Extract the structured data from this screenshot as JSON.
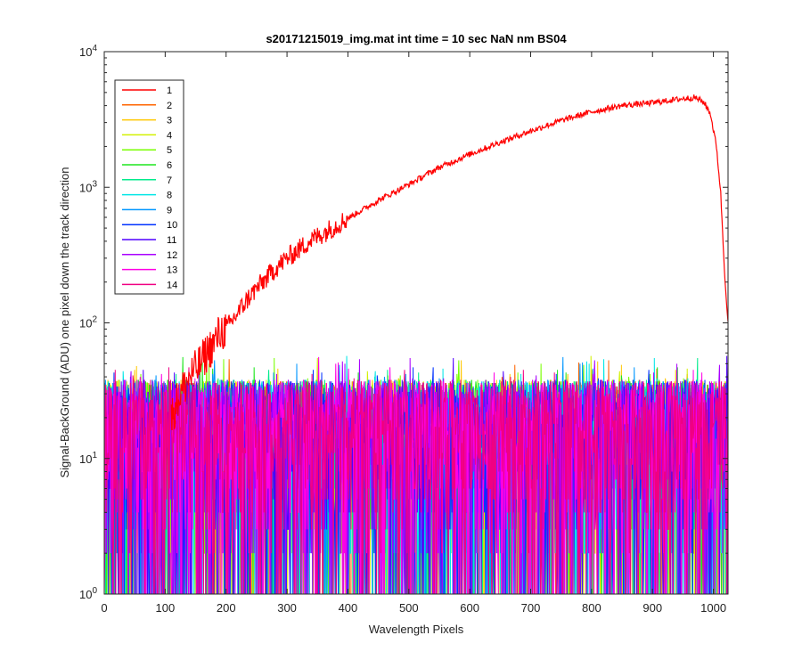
{
  "chart_data": {
    "type": "line",
    "title": "s20171215019_img.mat int time = 10 sec  NaN nm BS04",
    "xlabel": "Wavelength Pixels",
    "ylabel": "Signal-BackGround (ADU) one pixel down the track direction",
    "xlim": [
      0,
      1024
    ],
    "ylim": [
      1,
      10000
    ],
    "yscale": "log",
    "x_ticks": [
      "0",
      "100",
      "200",
      "300",
      "400",
      "500",
      "600",
      "700",
      "800",
      "900",
      "1000"
    ],
    "y_ticks": [
      {
        "base": "10",
        "exp": "0"
      },
      {
        "base": "10",
        "exp": "1"
      },
      {
        "base": "10",
        "exp": "2"
      },
      {
        "base": "10",
        "exp": "3"
      },
      {
        "base": "10",
        "exp": "4"
      }
    ],
    "legend_position": "top-left",
    "series": [
      {
        "name": "1",
        "color": "#ff0000",
        "kind": "signal",
        "x": [
          110,
          120,
          130,
          140,
          150,
          160,
          170,
          180,
          190,
          200,
          220,
          240,
          260,
          280,
          300,
          320,
          340,
          360,
          380,
          400,
          450,
          500,
          550,
          600,
          650,
          700,
          750,
          800,
          850,
          900,
          950,
          970,
          985,
          995,
          1005,
          1012,
          1018,
          1024
        ],
        "y": [
          20,
          27,
          33,
          40,
          45,
          52,
          62,
          70,
          85,
          90,
          120,
          160,
          200,
          250,
          300,
          350,
          410,
          460,
          520,
          590,
          800,
          1050,
          1400,
          1750,
          2150,
          2600,
          3100,
          3600,
          4000,
          4200,
          4500,
          4600,
          4200,
          3500,
          2000,
          900,
          250,
          100
        ]
      },
      {
        "name": "2",
        "color": "#ff6400",
        "kind": "noise"
      },
      {
        "name": "3",
        "color": "#ffc800",
        "kind": "noise"
      },
      {
        "name": "4",
        "color": "#d2f000",
        "kind": "noise"
      },
      {
        "name": "5",
        "color": "#78ff00",
        "kind": "noise"
      },
      {
        "name": "6",
        "color": "#1ee61e",
        "kind": "noise"
      },
      {
        "name": "7",
        "color": "#00eb8c",
        "kind": "noise"
      },
      {
        "name": "8",
        "color": "#00e6e6",
        "kind": "noise"
      },
      {
        "name": "9",
        "color": "#0096ff",
        "kind": "noise"
      },
      {
        "name": "10",
        "color": "#0032ff",
        "kind": "noise"
      },
      {
        "name": "11",
        "color": "#5000ff",
        "kind": "noise"
      },
      {
        "name": "12",
        "color": "#aa00ff",
        "kind": "noise"
      },
      {
        "name": "13",
        "color": "#ff00e6",
        "kind": "noise"
      },
      {
        "name": "14",
        "color": "#f00082",
        "kind": "noise"
      }
    ]
  }
}
